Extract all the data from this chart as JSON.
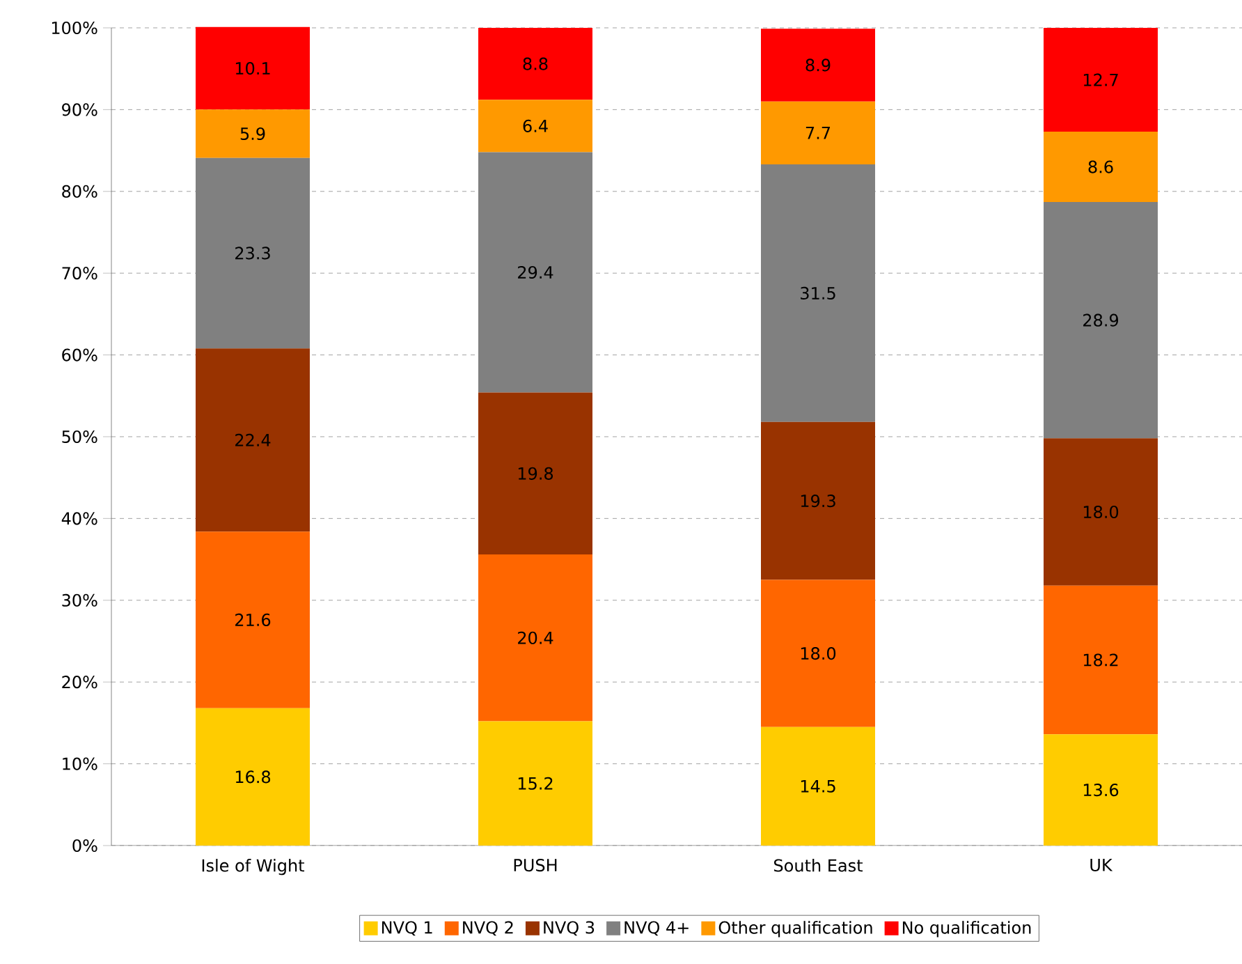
{
  "chart_data": {
    "type": "bar",
    "stacked": true,
    "grid": "y",
    "legend": "bottom",
    "categories": [
      "Isle of Wight",
      "PUSH",
      "South East",
      "UK"
    ],
    "series": [
      {
        "name": "NVQ 1",
        "color": "#ffcc00",
        "values": [
          16.8,
          15.2,
          14.5,
          13.6
        ],
        "value_labels": [
          "16.8",
          "15.2",
          "14.5",
          "13.6"
        ]
      },
      {
        "name": "NVQ 2",
        "color": "#ff6600",
        "values": [
          21.6,
          20.4,
          18.0,
          18.2
        ],
        "value_labels": [
          "21.6",
          "20.4",
          "18.0",
          "18.2"
        ]
      },
      {
        "name": "NVQ 3",
        "color": "#993300",
        "values": [
          22.4,
          19.8,
          19.3,
          18.0
        ],
        "value_labels": [
          "22.4",
          "19.8",
          "19.3",
          "18.0"
        ]
      },
      {
        "name": "NVQ 4+",
        "color": "#808080",
        "values": [
          23.3,
          29.4,
          31.5,
          28.9
        ],
        "value_labels": [
          "23.3",
          "29.4",
          "31.5",
          "28.9"
        ]
      },
      {
        "name": "Other qualification",
        "color": "#ff9900",
        "values": [
          5.9,
          6.4,
          7.7,
          8.6
        ],
        "value_labels": [
          "5.9",
          "6.4",
          "7.7",
          "8.6"
        ]
      },
      {
        "name": "No qualification",
        "color": "#ff0000",
        "values": [
          10.1,
          8.8,
          8.9,
          12.7
        ],
        "value_labels": [
          "10.1",
          "8.8",
          "8.9",
          "12.7"
        ]
      }
    ],
    "ylim": [
      0,
      100
    ],
    "yticks": [
      {
        "value": 0,
        "label": "0%"
      },
      {
        "value": 10,
        "label": "10%"
      },
      {
        "value": 20,
        "label": "20%"
      },
      {
        "value": 30,
        "label": "30%"
      },
      {
        "value": 40,
        "label": "40%"
      },
      {
        "value": 50,
        "label": "50%"
      },
      {
        "value": 60,
        "label": "60%"
      },
      {
        "value": 70,
        "label": "70%"
      },
      {
        "value": 80,
        "label": "80%"
      },
      {
        "value": 90,
        "label": "90%"
      },
      {
        "value": 100,
        "label": "100%"
      }
    ]
  }
}
